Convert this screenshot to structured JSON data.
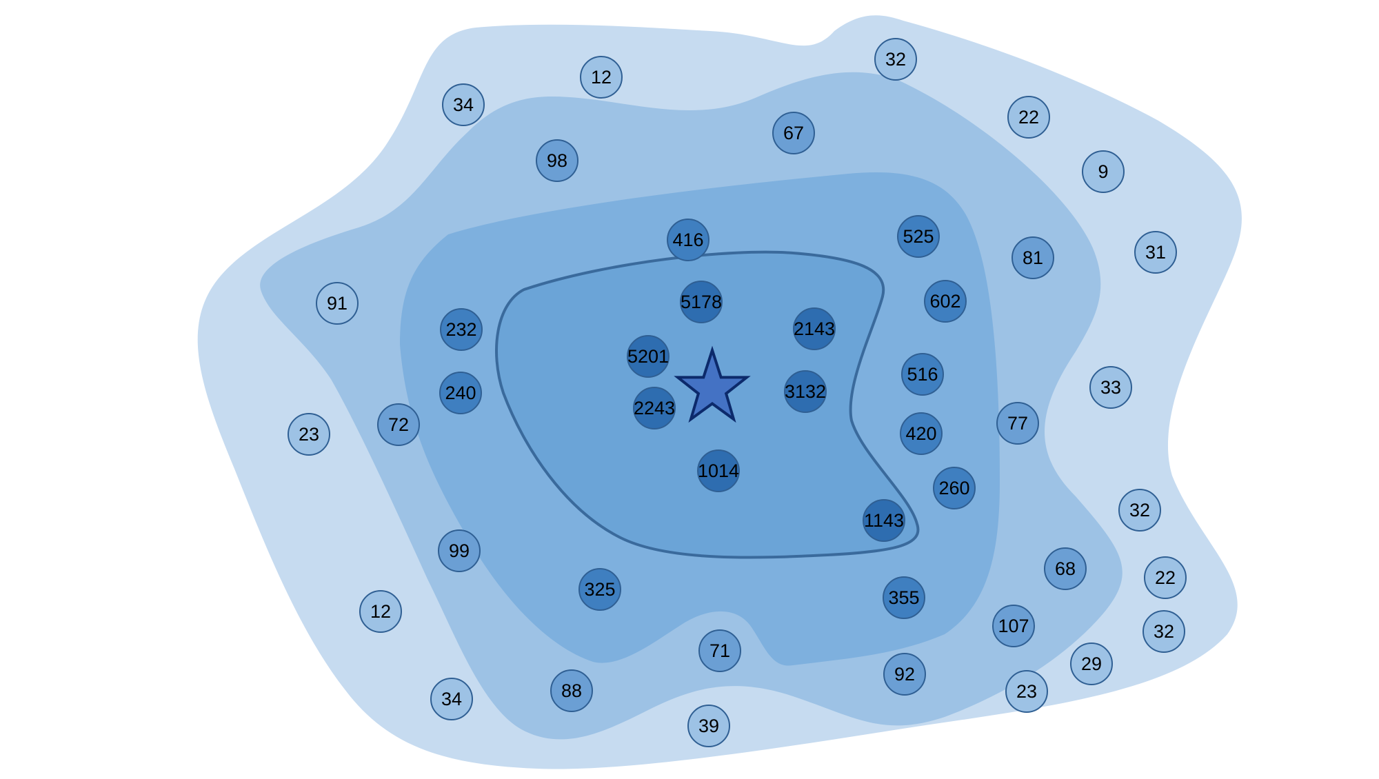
{
  "diagram": {
    "colors": {
      "zone_outer": "#c6dbf0",
      "zone_second": "#9dc2e5",
      "zone_third": "#7eb0de",
      "zone_core": "#6ba4d7",
      "core_outline": "#3a6a9c",
      "bubble_light": "#9dc2e5",
      "bubble_mid": "#6b9fd4",
      "bubble_dark": "#3f7fc0",
      "bubble_darkest": "#2e6db0",
      "bubble_stroke": "#2f5f93",
      "star_fill": "#4472c4",
      "star_stroke": "#0c2a6b"
    },
    "center_marker": {
      "icon": "star-icon"
    },
    "nodes": [
      {
        "label": "32",
        "tier": "light"
      },
      {
        "label": "12",
        "tier": "light"
      },
      {
        "label": "34",
        "tier": "light"
      },
      {
        "label": "22",
        "tier": "light"
      },
      {
        "label": "9",
        "tier": "light"
      },
      {
        "label": "31",
        "tier": "light"
      },
      {
        "label": "91",
        "tier": "light"
      },
      {
        "label": "23",
        "tier": "light"
      },
      {
        "label": "33",
        "tier": "light"
      },
      {
        "label": "32",
        "tier": "light"
      },
      {
        "label": "22",
        "tier": "light"
      },
      {
        "label": "32",
        "tier": "light"
      },
      {
        "label": "29",
        "tier": "light"
      },
      {
        "label": "23",
        "tier": "light"
      },
      {
        "label": "12",
        "tier": "light"
      },
      {
        "label": "34",
        "tier": "light"
      },
      {
        "label": "39",
        "tier": "light"
      },
      {
        "label": "67",
        "tier": "mid"
      },
      {
        "label": "98",
        "tier": "mid"
      },
      {
        "label": "81",
        "tier": "mid"
      },
      {
        "label": "72",
        "tier": "mid"
      },
      {
        "label": "77",
        "tier": "mid"
      },
      {
        "label": "99",
        "tier": "mid"
      },
      {
        "label": "68",
        "tier": "mid"
      },
      {
        "label": "107",
        "tier": "mid"
      },
      {
        "label": "88",
        "tier": "mid"
      },
      {
        "label": "71",
        "tier": "mid"
      },
      {
        "label": "92",
        "tier": "mid"
      },
      {
        "label": "416",
        "tier": "dark"
      },
      {
        "label": "525",
        "tier": "dark"
      },
      {
        "label": "602",
        "tier": "dark"
      },
      {
        "label": "232",
        "tier": "dark"
      },
      {
        "label": "240",
        "tier": "dark"
      },
      {
        "label": "516",
        "tier": "dark"
      },
      {
        "label": "420",
        "tier": "dark"
      },
      {
        "label": "260",
        "tier": "dark"
      },
      {
        "label": "325",
        "tier": "dark"
      },
      {
        "label": "355",
        "tier": "dark"
      },
      {
        "label": "5178",
        "tier": "darkest"
      },
      {
        "label": "2143",
        "tier": "darkest"
      },
      {
        "label": "5201",
        "tier": "darkest"
      },
      {
        "label": "3132",
        "tier": "darkest"
      },
      {
        "label": "2243",
        "tier": "darkest"
      },
      {
        "label": "1014",
        "tier": "darkest"
      },
      {
        "label": "1143",
        "tier": "darkest"
      }
    ]
  }
}
